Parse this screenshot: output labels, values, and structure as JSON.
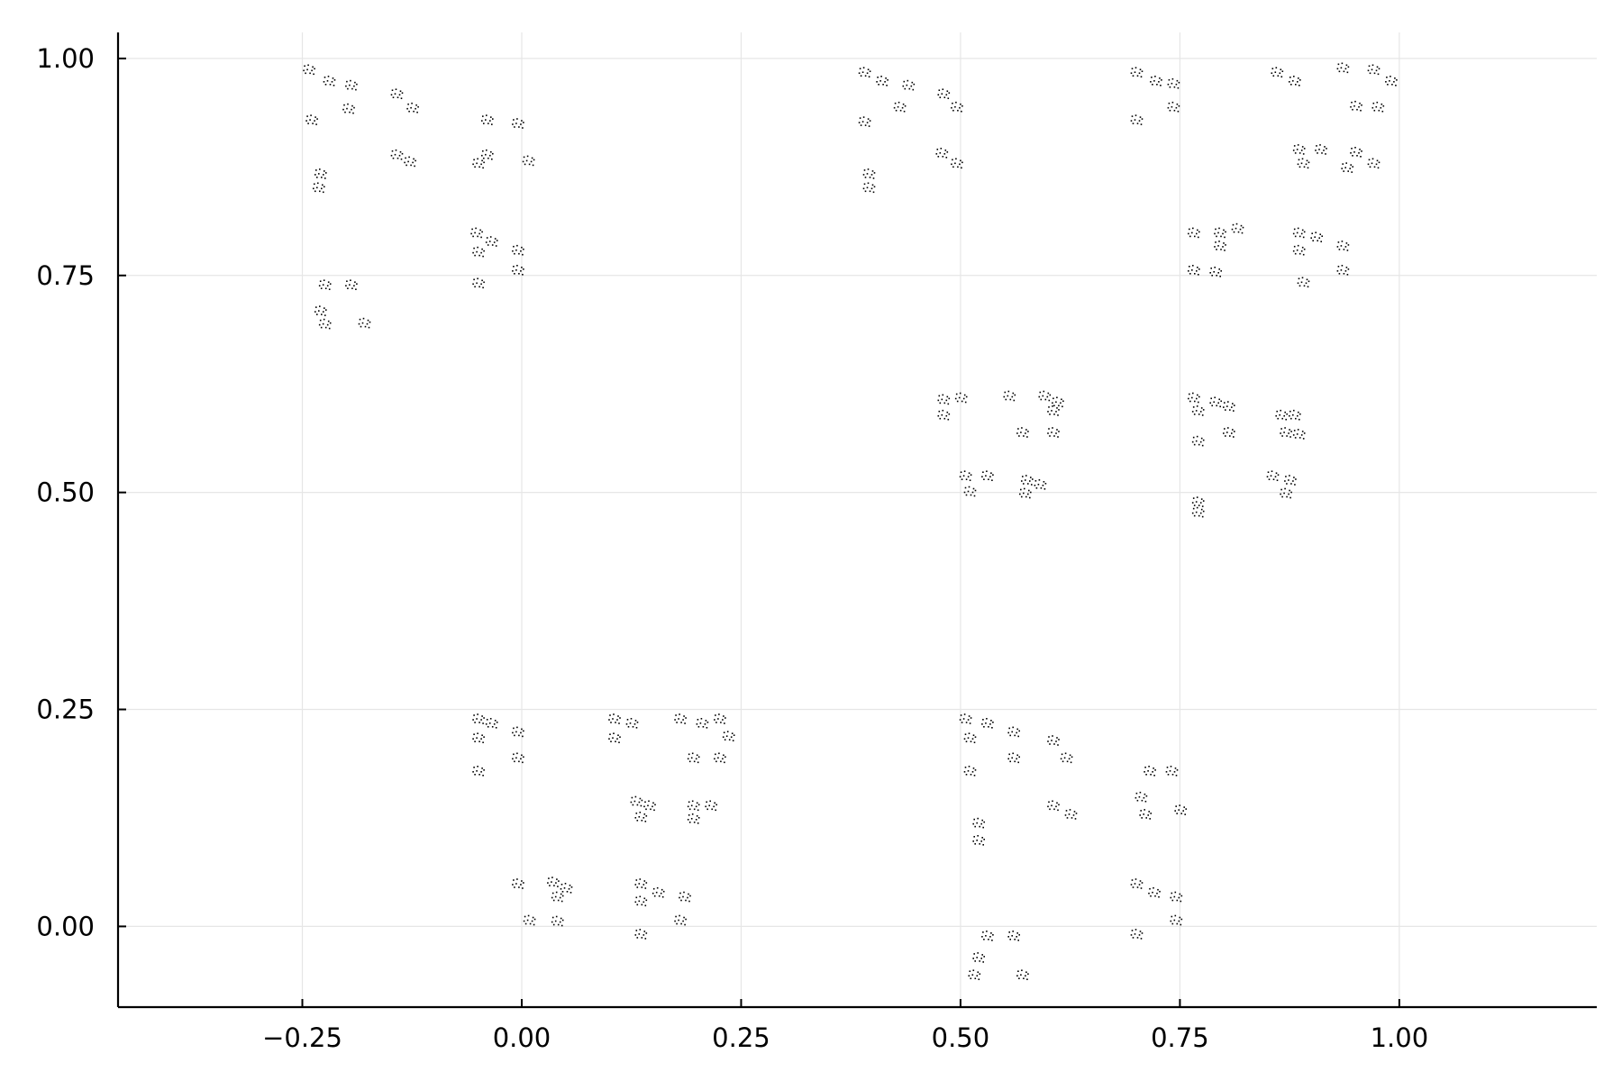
{
  "chart_data": {
    "type": "scatter",
    "title": "",
    "xlabel": "",
    "ylabel": "",
    "xlim": [
      -0.46,
      1.225
    ],
    "ylim": [
      -0.093,
      1.03
    ],
    "x_ticks": [
      -0.25,
      0.0,
      0.25,
      0.5,
      0.75,
      1.0
    ],
    "x_tick_labels": [
      "−0.25",
      "0.00",
      "0.25",
      "0.50",
      "0.75",
      "1.00"
    ],
    "y_ticks": [
      0.0,
      0.25,
      0.5,
      0.75,
      1.0
    ],
    "y_tick_labels": [
      "0.00",
      "0.25",
      "0.50",
      "0.75",
      "1.00"
    ],
    "grid": true,
    "legend": "none",
    "marker_color": "#000000",
    "series": [
      {
        "values": [
          {
            "x": -0.243,
            "y": 0.988
          },
          {
            "x": -0.22,
            "y": 0.975
          },
          {
            "x": -0.195,
            "y": 0.97
          },
          {
            "x": -0.24,
            "y": 0.93
          },
          {
            "x": -0.198,
            "y": 0.943
          },
          {
            "x": -0.143,
            "y": 0.96
          },
          {
            "x": -0.125,
            "y": 0.944
          },
          {
            "x": -0.143,
            "y": 0.89
          },
          {
            "x": -0.128,
            "y": 0.882
          },
          {
            "x": -0.23,
            "y": 0.868
          },
          {
            "x": -0.232,
            "y": 0.852
          },
          {
            "x": -0.04,
            "y": 0.93
          },
          {
            "x": -0.005,
            "y": 0.926
          },
          {
            "x": -0.04,
            "y": 0.89
          },
          {
            "x": 0.007,
            "y": 0.883
          },
          {
            "x": -0.05,
            "y": 0.88
          },
          {
            "x": -0.052,
            "y": 0.8
          },
          {
            "x": -0.035,
            "y": 0.79
          },
          {
            "x": -0.005,
            "y": 0.78
          },
          {
            "x": -0.05,
            "y": 0.778
          },
          {
            "x": -0.05,
            "y": 0.742
          },
          {
            "x": -0.005,
            "y": 0.757
          },
          {
            "x": -0.225,
            "y": 0.74
          },
          {
            "x": -0.195,
            "y": 0.74
          },
          {
            "x": -0.23,
            "y": 0.71
          },
          {
            "x": -0.225,
            "y": 0.695
          },
          {
            "x": -0.18,
            "y": 0.696
          },
          {
            "x": 0.39,
            "y": 0.985
          },
          {
            "x": 0.41,
            "y": 0.975
          },
          {
            "x": 0.44,
            "y": 0.97
          },
          {
            "x": 0.39,
            "y": 0.928
          },
          {
            "x": 0.43,
            "y": 0.945
          },
          {
            "x": 0.48,
            "y": 0.96
          },
          {
            "x": 0.495,
            "y": 0.945
          },
          {
            "x": 0.478,
            "y": 0.892
          },
          {
            "x": 0.495,
            "y": 0.88
          },
          {
            "x": 0.395,
            "y": 0.868
          },
          {
            "x": 0.395,
            "y": 0.852
          },
          {
            "x": 0.7,
            "y": 0.985
          },
          {
            "x": 0.722,
            "y": 0.975
          },
          {
            "x": 0.742,
            "y": 0.972
          },
          {
            "x": 0.7,
            "y": 0.93
          },
          {
            "x": 0.742,
            "y": 0.945
          },
          {
            "x": 0.86,
            "y": 0.985
          },
          {
            "x": 0.88,
            "y": 0.975
          },
          {
            "x": 0.935,
            "y": 0.99
          },
          {
            "x": 0.97,
            "y": 0.988
          },
          {
            "x": 0.99,
            "y": 0.975
          },
          {
            "x": 0.95,
            "y": 0.946
          },
          {
            "x": 0.975,
            "y": 0.945
          },
          {
            "x": 0.885,
            "y": 0.896
          },
          {
            "x": 0.91,
            "y": 0.896
          },
          {
            "x": 0.89,
            "y": 0.88
          },
          {
            "x": 0.95,
            "y": 0.893
          },
          {
            "x": 0.97,
            "y": 0.88
          },
          {
            "x": 0.94,
            "y": 0.875
          },
          {
            "x": 0.765,
            "y": 0.8
          },
          {
            "x": 0.795,
            "y": 0.8
          },
          {
            "x": 0.815,
            "y": 0.805
          },
          {
            "x": 0.795,
            "y": 0.785
          },
          {
            "x": 0.765,
            "y": 0.757
          },
          {
            "x": 0.79,
            "y": 0.755
          },
          {
            "x": 0.885,
            "y": 0.8
          },
          {
            "x": 0.905,
            "y": 0.795
          },
          {
            "x": 0.935,
            "y": 0.785
          },
          {
            "x": 0.885,
            "y": 0.78
          },
          {
            "x": 0.89,
            "y": 0.743
          },
          {
            "x": 0.935,
            "y": 0.757
          },
          {
            "x": 0.48,
            "y": 0.608
          },
          {
            "x": 0.5,
            "y": 0.61
          },
          {
            "x": 0.48,
            "y": 0.59
          },
          {
            "x": 0.555,
            "y": 0.612
          },
          {
            "x": 0.595,
            "y": 0.612
          },
          {
            "x": 0.61,
            "y": 0.605
          },
          {
            "x": 0.605,
            "y": 0.595
          },
          {
            "x": 0.57,
            "y": 0.57
          },
          {
            "x": 0.605,
            "y": 0.57
          },
          {
            "x": 0.505,
            "y": 0.52
          },
          {
            "x": 0.53,
            "y": 0.52
          },
          {
            "x": 0.51,
            "y": 0.502
          },
          {
            "x": 0.575,
            "y": 0.515
          },
          {
            "x": 0.59,
            "y": 0.51
          },
          {
            "x": 0.573,
            "y": 0.5
          },
          {
            "x": 0.765,
            "y": 0.61
          },
          {
            "x": 0.79,
            "y": 0.605
          },
          {
            "x": 0.805,
            "y": 0.6
          },
          {
            "x": 0.77,
            "y": 0.595
          },
          {
            "x": 0.77,
            "y": 0.56
          },
          {
            "x": 0.805,
            "y": 0.57
          },
          {
            "x": 0.865,
            "y": 0.59
          },
          {
            "x": 0.88,
            "y": 0.59
          },
          {
            "x": 0.87,
            "y": 0.57
          },
          {
            "x": 0.885,
            "y": 0.568
          },
          {
            "x": 0.77,
            "y": 0.49
          },
          {
            "x": 0.77,
            "y": 0.478
          },
          {
            "x": 0.855,
            "y": 0.52
          },
          {
            "x": 0.875,
            "y": 0.515
          },
          {
            "x": 0.87,
            "y": 0.5
          },
          {
            "x": -0.05,
            "y": 0.24
          },
          {
            "x": -0.035,
            "y": 0.235
          },
          {
            "x": -0.005,
            "y": 0.225
          },
          {
            "x": -0.05,
            "y": 0.218
          },
          {
            "x": -0.05,
            "y": 0.18
          },
          {
            "x": -0.005,
            "y": 0.195
          },
          {
            "x": 0.105,
            "y": 0.24
          },
          {
            "x": 0.125,
            "y": 0.235
          },
          {
            "x": 0.105,
            "y": 0.218
          },
          {
            "x": 0.18,
            "y": 0.24
          },
          {
            "x": 0.205,
            "y": 0.235
          },
          {
            "x": 0.225,
            "y": 0.24
          },
          {
            "x": 0.235,
            "y": 0.22
          },
          {
            "x": 0.195,
            "y": 0.195
          },
          {
            "x": 0.225,
            "y": 0.195
          },
          {
            "x": 0.13,
            "y": 0.145
          },
          {
            "x": 0.145,
            "y": 0.14
          },
          {
            "x": 0.135,
            "y": 0.127
          },
          {
            "x": 0.195,
            "y": 0.14
          },
          {
            "x": 0.215,
            "y": 0.14
          },
          {
            "x": 0.195,
            "y": 0.125
          },
          {
            "x": -0.005,
            "y": 0.05
          },
          {
            "x": 0.035,
            "y": 0.052
          },
          {
            "x": 0.05,
            "y": 0.045
          },
          {
            "x": 0.04,
            "y": 0.035
          },
          {
            "x": 0.008,
            "y": 0.008
          },
          {
            "x": 0.04,
            "y": 0.007
          },
          {
            "x": 0.135,
            "y": 0.05
          },
          {
            "x": 0.155,
            "y": 0.04
          },
          {
            "x": 0.185,
            "y": 0.035
          },
          {
            "x": 0.135,
            "y": 0.03
          },
          {
            "x": 0.18,
            "y": 0.008
          },
          {
            "x": 0.135,
            "y": -0.008
          },
          {
            "x": 0.505,
            "y": 0.24
          },
          {
            "x": 0.53,
            "y": 0.235
          },
          {
            "x": 0.56,
            "y": 0.225
          },
          {
            "x": 0.51,
            "y": 0.218
          },
          {
            "x": 0.56,
            "y": 0.195
          },
          {
            "x": 0.51,
            "y": 0.18
          },
          {
            "x": 0.605,
            "y": 0.215
          },
          {
            "x": 0.62,
            "y": 0.195
          },
          {
            "x": 0.605,
            "y": 0.14
          },
          {
            "x": 0.625,
            "y": 0.13
          },
          {
            "x": 0.52,
            "y": 0.12
          },
          {
            "x": 0.52,
            "y": 0.1
          },
          {
            "x": 0.53,
            "y": -0.01
          },
          {
            "x": 0.56,
            "y": -0.01
          },
          {
            "x": 0.52,
            "y": -0.035
          },
          {
            "x": 0.515,
            "y": -0.055
          },
          {
            "x": 0.57,
            "y": -0.055
          },
          {
            "x": 0.715,
            "y": 0.18
          },
          {
            "x": 0.74,
            "y": 0.18
          },
          {
            "x": 0.705,
            "y": 0.15
          },
          {
            "x": 0.71,
            "y": 0.13
          },
          {
            "x": 0.75,
            "y": 0.135
          },
          {
            "x": 0.7,
            "y": 0.05
          },
          {
            "x": 0.72,
            "y": 0.04
          },
          {
            "x": 0.745,
            "y": 0.035
          },
          {
            "x": 0.7,
            "y": -0.008
          },
          {
            "x": 0.745,
            "y": 0.008
          }
        ]
      }
    ]
  }
}
